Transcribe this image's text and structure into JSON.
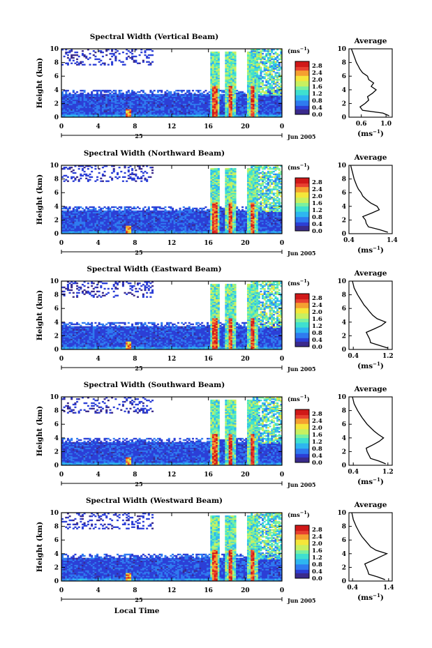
{
  "xlabel": "Local Time",
  "ylabel": "Height (km)",
  "date_label": "Jun 2005",
  "day_label": "25",
  "unit_label": "(ms",
  "unit_exp": "−1",
  "avg_unit": "(ms",
  "avg_title": "Average",
  "colorbar_ticks": [
    "2.8",
    "2.4",
    "2.0",
    "1.6",
    "1.2",
    "0.8",
    "0.4",
    "0.0"
  ],
  "colors": {
    "colormap": [
      "#3a2a8c",
      "#2c3fd6",
      "#2f7bf0",
      "#2eb6f0",
      "#3fe0d0",
      "#7af0a0",
      "#c8f060",
      "#f5e63a",
      "#f5a030",
      "#e84030",
      "#d01818"
    ]
  },
  "chart_data": [
    {
      "type": "heatmap",
      "title": "Spectral Width (Vertical Beam)",
      "xticks": [
        "0",
        "4",
        "8",
        "12",
        "16",
        "20",
        "0"
      ],
      "yticks": [
        "0",
        "2",
        "4",
        "6",
        "8",
        "10"
      ],
      "xlim": [
        0,
        24
      ],
      "ylim": [
        0,
        10
      ],
      "colorbar_range": [
        0,
        3.0
      ],
      "average_profile": {
        "title": "Average",
        "xticks": [
          "0.6",
          "1.0"
        ],
        "xlim": [
          0.4,
          1.1
        ],
        "ylim": [
          0,
          10
        ],
        "height": [
          0.2,
          0.6,
          1.0,
          1.5,
          2.0,
          2.5,
          3.0,
          3.5,
          4.0,
          4.5,
          5.0,
          5.5,
          6.0,
          6.5,
          7.0,
          7.5,
          8.0,
          8.5,
          9.0,
          9.5,
          10.0
        ],
        "value": [
          1.05,
          0.95,
          0.62,
          0.58,
          0.66,
          0.72,
          0.7,
          0.78,
          0.84,
          0.76,
          0.8,
          0.72,
          0.7,
          0.62,
          0.58,
          0.55,
          0.52,
          0.5,
          0.48,
          0.46,
          0.44
        ]
      }
    },
    {
      "type": "heatmap",
      "title": "Spectral Width (Northward Beam)",
      "xticks": [
        "0",
        "4",
        "8",
        "12",
        "16",
        "20",
        "0"
      ],
      "yticks": [
        "0",
        "2",
        "4",
        "6",
        "8",
        "10"
      ],
      "xlim": [
        0,
        24
      ],
      "ylim": [
        0,
        10
      ],
      "colorbar_range": [
        0,
        3.0
      ],
      "average_profile": {
        "title": "Average",
        "xticks": [
          "0.4",
          "1.4"
        ],
        "xlim": [
          0.4,
          1.4
        ],
        "ylim": [
          0,
          10
        ],
        "height": [
          0.2,
          0.6,
          1.0,
          1.5,
          2.0,
          2.5,
          3.0,
          3.5,
          4.0,
          4.5,
          5.0,
          5.5,
          6.0,
          6.5,
          7.0,
          7.5,
          8.0,
          8.5,
          9.0,
          9.5,
          10.0
        ],
        "value": [
          1.3,
          1.1,
          0.85,
          0.8,
          0.78,
          0.72,
          0.92,
          1.1,
          1.05,
          0.9,
          0.8,
          0.72,
          0.68,
          0.62,
          0.58,
          0.55,
          0.52,
          0.5,
          0.48,
          0.46,
          0.44
        ]
      }
    },
    {
      "type": "heatmap",
      "title": "Spectral Width (Eastward Beam)",
      "xticks": [
        "0",
        "4",
        "8",
        "12",
        "16",
        "20",
        "0"
      ],
      "yticks": [
        "0",
        "2",
        "4",
        "6",
        "8",
        "10"
      ],
      "xlim": [
        0,
        24
      ],
      "ylim": [
        0,
        10
      ],
      "colorbar_range": [
        0,
        3.0
      ],
      "average_profile": {
        "title": "Average",
        "xticks": [
          "0.4",
          "1.2"
        ],
        "xlim": [
          0.3,
          1.3
        ],
        "ylim": [
          0,
          10
        ],
        "height": [
          0.2,
          0.6,
          1.0,
          1.5,
          2.0,
          2.5,
          3.0,
          3.5,
          4.0,
          4.5,
          5.0,
          5.5,
          6.0,
          6.5,
          7.0,
          7.5,
          8.0,
          8.5,
          9.0,
          9.5,
          10.0
        ],
        "value": [
          1.2,
          1.0,
          0.8,
          0.78,
          0.74,
          0.7,
          0.88,
          1.05,
          1.15,
          0.95,
          0.85,
          0.78,
          0.72,
          0.65,
          0.6,
          0.55,
          0.5,
          0.46,
          0.42,
          0.4,
          0.38
        ]
      }
    },
    {
      "type": "heatmap",
      "title": "Spectral Width (Southward Beam)",
      "xticks": [
        "0",
        "4",
        "8",
        "12",
        "16",
        "20",
        "0"
      ],
      "yticks": [
        "0",
        "2",
        "4",
        "6",
        "8",
        "10"
      ],
      "xlim": [
        0,
        24
      ],
      "ylim": [
        0,
        10
      ],
      "colorbar_range": [
        0,
        3.0
      ],
      "average_profile": {
        "title": "Average",
        "xticks": [
          "0.4",
          "1.2"
        ],
        "xlim": [
          0.3,
          1.3
        ],
        "ylim": [
          0,
          10
        ],
        "height": [
          0.2,
          0.6,
          1.0,
          1.5,
          2.0,
          2.5,
          3.0,
          3.5,
          4.0,
          4.5,
          5.0,
          5.5,
          6.0,
          6.5,
          7.0,
          7.5,
          8.0,
          8.5,
          9.0,
          9.5,
          10.0
        ],
        "value": [
          1.15,
          1.0,
          0.8,
          0.76,
          0.72,
          0.7,
          0.86,
          1.0,
          1.1,
          0.98,
          0.88,
          0.8,
          0.72,
          0.66,
          0.6,
          0.55,
          0.5,
          0.46,
          0.42,
          0.4,
          0.38
        ]
      }
    },
    {
      "type": "heatmap",
      "title": "Spectral Width (Westward Beam)",
      "xticks": [
        "0",
        "4",
        "8",
        "12",
        "16",
        "20",
        "0"
      ],
      "yticks": [
        "0",
        "2",
        "4",
        "6",
        "8",
        "10"
      ],
      "xlim": [
        0,
        24
      ],
      "ylim": [
        0,
        10
      ],
      "colorbar_range": [
        0,
        3.0
      ],
      "average_profile": {
        "title": "Average",
        "xticks": [
          "0.4",
          "1.4"
        ],
        "xlim": [
          0.3,
          1.5
        ],
        "ylim": [
          0,
          10
        ],
        "height": [
          0.2,
          0.6,
          1.0,
          1.5,
          2.0,
          2.5,
          3.0,
          3.5,
          4.0,
          4.5,
          5.0,
          5.5,
          6.0,
          6.5,
          7.0,
          7.5,
          8.0,
          8.5,
          9.0,
          9.5,
          10.0
        ],
        "value": [
          1.3,
          1.1,
          0.85,
          0.82,
          0.78,
          0.74,
          0.95,
          1.15,
          1.35,
          1.05,
          0.9,
          0.82,
          0.74,
          0.66,
          0.6,
          0.55,
          0.5,
          0.46,
          0.42,
          0.4,
          0.38
        ]
      }
    }
  ]
}
